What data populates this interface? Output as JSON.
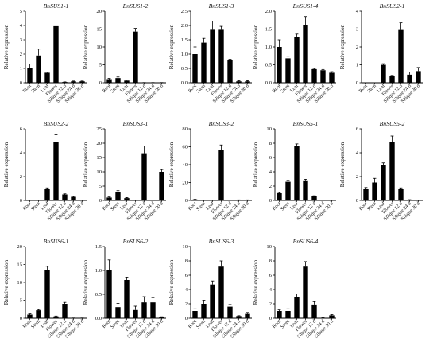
{
  "chart_data": [
    {
      "type": "bar",
      "title": "BnSUS1-1",
      "ylabel": "Relative expression",
      "ylim": [
        0,
        5
      ],
      "yticks": [
        "0",
        "1",
        "2",
        "3",
        "4",
        "5"
      ],
      "categories": [
        "Root",
        "Stem",
        "Leaf",
        "Flower",
        "Silique 12 d",
        "Silique 24 d",
        "Silique 30 d"
      ],
      "values": [
        1.0,
        1.9,
        0.7,
        3.95,
        0.05,
        0.1,
        0.1
      ],
      "errors": [
        0.3,
        0.45,
        0.05,
        0.35,
        0.01,
        0.02,
        0.02
      ]
    },
    {
      "type": "bar",
      "title": "BnSUS1-2",
      "ylabel": "Relative expression",
      "ylim": [
        0,
        20
      ],
      "yticks": [
        "0",
        "5",
        "10",
        "15",
        "20"
      ],
      "categories": [
        "Root",
        "Stem",
        "Leaf",
        "Flower",
        "Silique 12 d",
        "Silique 24 d",
        "Silique 30 d"
      ],
      "values": [
        1.0,
        1.3,
        0.6,
        14.3,
        0.05,
        0.05,
        0.05
      ],
      "errors": [
        0.2,
        0.3,
        0.2,
        0.9,
        0.01,
        0.01,
        0.01
      ]
    },
    {
      "type": "bar",
      "title": "BnSUS1-3",
      "ylabel": "Relative expression",
      "ylim": [
        0,
        2.5
      ],
      "yticks": [
        "0.0",
        "0.5",
        "1.0",
        "1.5",
        "2.0",
        "2.5"
      ],
      "categories": [
        "Root",
        "Stem",
        "Leaf",
        "Flower",
        "Silique 12 d",
        "Silique 24 d",
        "Silique 30 d"
      ],
      "values": [
        1.0,
        1.4,
        1.85,
        1.85,
        0.8,
        0.05,
        0.05
      ],
      "errors": [
        0.25,
        0.15,
        0.3,
        0.12,
        0.02,
        0.02,
        0.02
      ]
    },
    {
      "type": "bar",
      "title": "BnSUS1-4",
      "ylabel": "Relative expression",
      "ylim": [
        0,
        2.0
      ],
      "yticks": [
        "0.0",
        "0.5",
        "1.0",
        "1.5",
        "2.0"
      ],
      "categories": [
        "Root",
        "Stem",
        "Leaf",
        "Flower",
        "Silique 12 d",
        "Silique 24 d",
        "Silique 30 d"
      ],
      "values": [
        1.0,
        0.68,
        1.28,
        1.6,
        0.38,
        0.35,
        0.28
      ],
      "errors": [
        0.2,
        0.06,
        0.08,
        0.25,
        0.02,
        0.02,
        0.03
      ]
    },
    {
      "type": "bar",
      "title": "BnSUS2-1",
      "ylabel": "Relative expression",
      "ylim": [
        0,
        4
      ],
      "yticks": [
        "0",
        "1",
        "2",
        "3",
        "4"
      ],
      "categories": [
        "Root",
        "Stem",
        "Leaf",
        "Flower",
        "Silique 12 d",
        "Silique 24 d",
        "Silique 30 d"
      ],
      "values": [
        0.0,
        0.0,
        1.0,
        0.38,
        2.95,
        0.45,
        0.65
      ],
      "errors": [
        0,
        0,
        0.06,
        0.03,
        0.4,
        0.15,
        0.2
      ]
    },
    {
      "type": "bar",
      "title": "BnSUS2-2",
      "ylabel": "Relative expression",
      "ylim": [
        0,
        6
      ],
      "yticks": [
        "0",
        "2",
        "4",
        "6"
      ],
      "categories": [
        "Root",
        "Stem",
        "Leaf",
        "Flower",
        "Silique 12 d",
        "Silique 24 d",
        "Silique 30 d"
      ],
      "values": [
        0.0,
        0.0,
        1.0,
        4.9,
        0.5,
        0.3,
        0.0
      ],
      "errors": [
        0,
        0,
        0.05,
        0.6,
        0.05,
        0.05,
        0
      ]
    },
    {
      "type": "bar",
      "title": "BnSUS3-1",
      "ylabel": "Relative expression",
      "ylim": [
        0,
        25
      ],
      "yticks": [
        "0",
        "5",
        "10",
        "15",
        "20",
        "25"
      ],
      "categories": [
        "Root",
        "Stem",
        "Leaf",
        "Flower",
        "Silique 12 d",
        "Silique 24 d",
        "Silique 30 d"
      ],
      "values": [
        1.0,
        3.0,
        0.8,
        0.05,
        16.5,
        0.05,
        10.0
      ],
      "errors": [
        0.2,
        0.4,
        0.2,
        0.01,
        2.5,
        0.01,
        0.8
      ]
    },
    {
      "type": "bar",
      "title": "BnSUS3-2",
      "ylabel": "Relative expression",
      "ylim": [
        0,
        80
      ],
      "yticks": [
        "0",
        "20",
        "40",
        "60",
        "80"
      ],
      "categories": [
        "Root",
        "Stem",
        "Leaf",
        "Flower",
        "Silique 12 d",
        "Silique 24 d",
        "Silique 30 d"
      ],
      "values": [
        1.0,
        0.0,
        0.0,
        56.0,
        0.0,
        0.5,
        0.5
      ],
      "errors": [
        0.2,
        0,
        0,
        6,
        0,
        0.1,
        0.1
      ]
    },
    {
      "type": "bar",
      "title": "BnSUS5-1",
      "ylabel": "Relative expression",
      "ylim": [
        0,
        10
      ],
      "yticks": [
        "0",
        "2",
        "4",
        "6",
        "8",
        "10"
      ],
      "categories": [
        "Root",
        "Stem",
        "Leaf",
        "Flower",
        "Silique 12 d",
        "Silique 24 d",
        "Silique 30 d"
      ],
      "values": [
        1.0,
        2.6,
        7.6,
        2.8,
        0.6,
        0.0,
        0.0
      ],
      "errors": [
        0.1,
        0.2,
        0.3,
        0.15,
        0.05,
        0,
        0
      ]
    },
    {
      "type": "bar",
      "title": "BnSUS5-2",
      "ylabel": "Relative expression",
      "ylim": [
        0,
        6
      ],
      "yticks": [
        "0",
        "2",
        "4",
        "6"
      ],
      "categories": [
        "Root",
        "Stem",
        "Leaf",
        "Flower",
        "Silique 12 d",
        "Silique 24 d",
        "Silique 30 d"
      ],
      "values": [
        1.0,
        1.5,
        3.0,
        4.9,
        1.0,
        0.05,
        0.0
      ],
      "errors": [
        0.08,
        0.35,
        0.15,
        0.5,
        0.05,
        0.01,
        0
      ]
    },
    {
      "type": "bar",
      "title": "BnSUS6-1",
      "ylabel": "Relative expression",
      "ylim": [
        0,
        20
      ],
      "yticks": [
        "0",
        "5",
        "10",
        "15",
        "20"
      ],
      "categories": [
        "Root",
        "Stem",
        "Leaf",
        "Flower",
        "Silique 12 d",
        "Silique 24 d",
        "Silique 30 d"
      ],
      "values": [
        1.0,
        2.2,
        13.5,
        0.5,
        4.0,
        0.05,
        0.05
      ],
      "errors": [
        0.2,
        0.2,
        1.0,
        0.1,
        0.4,
        0.01,
        0.01
      ]
    },
    {
      "type": "bar",
      "title": "BnSUS6-2",
      "ylabel": "Relative expression",
      "ylim": [
        0,
        1.5
      ],
      "yticks": [
        "0.0",
        "0.5",
        "1.0",
        "1.5"
      ],
      "categories": [
        "Root",
        "Stem",
        "Leaf",
        "Flower",
        "Silique 12 d",
        "Silique 24 d",
        "Silique 30 d"
      ],
      "values": [
        1.0,
        0.23,
        0.8,
        0.17,
        0.33,
        0.33,
        0.02
      ],
      "errors": [
        0.22,
        0.08,
        0.06,
        0.08,
        0.12,
        0.1,
        0.01
      ]
    },
    {
      "type": "bar",
      "title": "BnSUS6-3",
      "ylabel": "Relative expression",
      "ylim": [
        0,
        10
      ],
      "yticks": [
        "0",
        "2",
        "4",
        "6",
        "8",
        "10"
      ],
      "categories": [
        "Root",
        "Stem",
        "Leaf",
        "Flower",
        "Silique 12 d",
        "Silique 24 d",
        "Silique 30 d"
      ],
      "values": [
        1.0,
        2.0,
        4.7,
        7.2,
        1.6,
        0.3,
        0.6
      ],
      "errors": [
        0.3,
        0.5,
        0.5,
        0.8,
        0.3,
        0.05,
        0.2
      ]
    },
    {
      "type": "bar",
      "title": "BnSUS6-4",
      "ylabel": "Relative expression",
      "ylim": [
        0,
        10
      ],
      "yticks": [
        "0",
        "2",
        "4",
        "6",
        "8",
        "10"
      ],
      "categories": [
        "Root",
        "Stem",
        "Leaf",
        "Flower",
        "Silique 12 d",
        "Silique 24 d",
        "Silique 30 d"
      ],
      "values": [
        1.0,
        1.0,
        3.0,
        7.2,
        1.9,
        0.05,
        0.4
      ],
      "errors": [
        0.15,
        0.3,
        0.4,
        0.7,
        0.4,
        0.01,
        0.1
      ]
    }
  ]
}
